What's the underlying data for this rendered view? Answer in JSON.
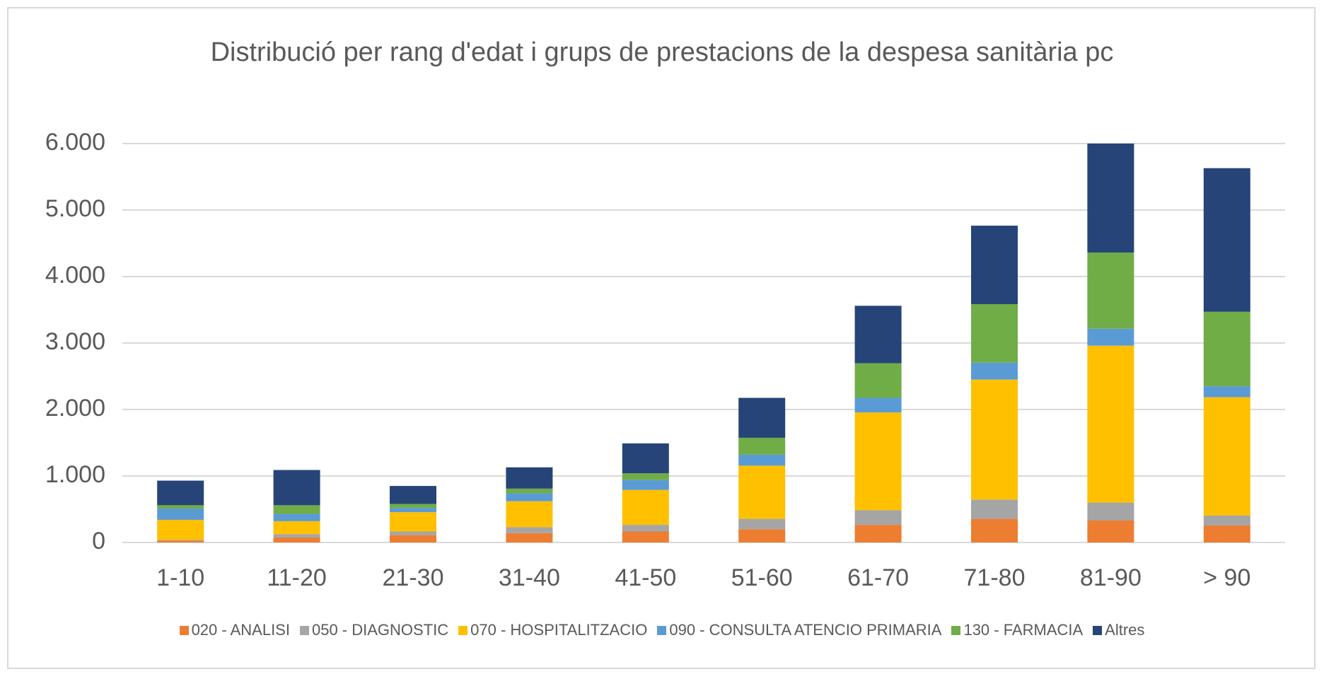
{
  "chart_data": {
    "type": "stacked_bar",
    "title": "Distribució per rang d'edat i grups de prestacions de la despesa sanitària pc",
    "categories": [
      "1-10",
      "11-20",
      "21-30",
      "31-40",
      "41-50",
      "51-60",
      "61-70",
      "71-80",
      "81-90",
      "> 90"
    ],
    "series": [
      {
        "name": "020 - ANALISI",
        "color": "#ed7d31",
        "values": [
          30,
          75,
          110,
          140,
          165,
          200,
          265,
          355,
          330,
          255
        ]
      },
      {
        "name": "050 - DIAGNOSTIC",
        "color": "#a5a5a5",
        "values": [
          10,
          50,
          55,
          90,
          100,
          155,
          220,
          290,
          270,
          150
        ]
      },
      {
        "name": "070 - HOSPITALITZACIO",
        "color": "#ffc000",
        "values": [
          300,
          195,
          290,
          390,
          525,
          800,
          1470,
          1805,
          2360,
          1780
        ]
      },
      {
        "name": "090 - CONSULTA ATENCIO PRIMARIA",
        "color": "#5b9bd5",
        "values": [
          170,
          110,
          65,
          120,
          150,
          165,
          220,
          255,
          255,
          165
        ]
      },
      {
        "name": "130 - FARMACIA",
        "color": "#70ad47",
        "values": [
          50,
          130,
          60,
          70,
          100,
          255,
          520,
          880,
          1145,
          1120
        ]
      },
      {
        "name": "Altres",
        "color": "#264478",
        "values": [
          370,
          530,
          270,
          320,
          450,
          600,
          865,
          1180,
          1640,
          2160
        ]
      }
    ],
    "ylim": [
      0,
      6000
    ],
    "yticks": [
      0,
      {
        "value": 1000,
        "label": "1.000"
      },
      {
        "value": 2000,
        "label": "2.000"
      },
      {
        "value": 3000,
        "label": "3.000"
      },
      {
        "value": 4000,
        "label": "4.000"
      },
      {
        "value": 5000,
        "label": "5.000"
      },
      {
        "value": 6000,
        "label": "6.000"
      }
    ],
    "grid": true,
    "legend": "bottom"
  }
}
